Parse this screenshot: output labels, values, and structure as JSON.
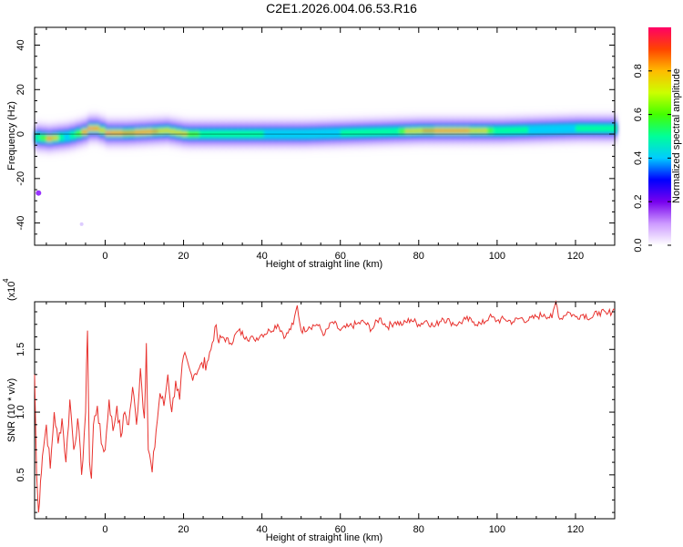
{
  "title": "C2E1.2026.004.06.53.R16",
  "colors": {
    "snr_line": "#e8322e",
    "axis": "#000000",
    "background": "#ffffff"
  },
  "chart_data": [
    {
      "type": "heatmap",
      "xlabel": "Height of straight line (km)",
      "ylabel": "Frequency (Hz)",
      "xlim": [
        -18,
        130
      ],
      "ylim": [
        -50,
        48
      ],
      "x_ticks": [
        0,
        20,
        40,
        60,
        80,
        100,
        120
      ],
      "y_ticks": [
        40,
        20,
        0,
        -20,
        -40
      ],
      "colorbar": {
        "label": "Normalized spectral amplitude",
        "range": [
          0,
          1
        ],
        "ticks": [
          "0.0",
          "0.2",
          "0.4",
          "0.6",
          "0.8"
        ],
        "colors": [
          "#ffffff",
          "#cc99ff",
          "#7700ee",
          "#0000ff",
          "#00ccff",
          "#00ff99",
          "#44ff00",
          "#ccff00",
          "#ffbb00",
          "#ff4400",
          "#ff0066"
        ]
      },
      "ridge": {
        "x": [
          -18,
          -15,
          -10,
          -8,
          -6,
          -4,
          -2,
          0,
          5,
          10,
          15,
          20,
          30,
          40,
          50,
          60,
          70,
          80,
          90,
          100,
          110,
          120,
          130
        ],
        "frequency": [
          -1.5,
          -2,
          -1,
          0,
          1,
          3,
          2,
          0.5,
          0.5,
          1,
          1.5,
          0,
          0,
          0,
          0,
          0.5,
          1,
          1.5,
          1.5,
          1.5,
          2,
          2.5,
          2.5
        ],
        "peak_amplitude": [
          0.6,
          0.9,
          0.5,
          0.7,
          0.9,
          1.0,
          0.8,
          0.95,
          0.85,
          0.9,
          0.8,
          0.75,
          0.7,
          0.6,
          0.55,
          0.6,
          0.65,
          0.85,
          0.9,
          0.7,
          0.55,
          0.6,
          0.65
        ]
      },
      "isolated_points": [
        {
          "x": -17,
          "frequency": -26.5,
          "amplitude": 0.1
        },
        {
          "x": -6,
          "frequency": -40.5,
          "amplitude": 0.02
        }
      ]
    },
    {
      "type": "line",
      "xlabel": "Height of straight line (km)",
      "ylabel": "SNR (10 * v/v)",
      "multiplier_label": "(x10",
      "multiplier_exp": "4",
      "xlim": [
        -18,
        130
      ],
      "ylim": [
        0.15,
        1.88
      ],
      "x_ticks": [
        0,
        20,
        40,
        60,
        80,
        100,
        120
      ],
      "y_ticks": [
        0.5,
        1.0,
        1.5
      ],
      "y_tick_labels": [
        "0.5",
        "1.0",
        "1.5"
      ],
      "series": [
        {
          "x": [
            -18,
            -17.5,
            -17,
            -16.5,
            -16,
            -15,
            -14,
            -13,
            -12,
            -11,
            -10,
            -9,
            -8,
            -7,
            -6,
            -5,
            -4.5,
            -4,
            -3.5,
            -3,
            -2,
            -1,
            0,
            1,
            2,
            3,
            4,
            5,
            6,
            7,
            8,
            9,
            10,
            10.5,
            11,
            12,
            13,
            14,
            15,
            16,
            17,
            18,
            19,
            20,
            22,
            24,
            26,
            27,
            28,
            29,
            30,
            32,
            34,
            36,
            38,
            40,
            42,
            44,
            46,
            48,
            49,
            50,
            52,
            54,
            56,
            58,
            60,
            62,
            64,
            66,
            68,
            70,
            72,
            74,
            76,
            78,
            80,
            82,
            84,
            86,
            88,
            90,
            92,
            94,
            96,
            98,
            100,
            102,
            104,
            106,
            108,
            110,
            112,
            114,
            115,
            116,
            118,
            120,
            122,
            124,
            126,
            128,
            130
          ],
          "values": [
            1.3,
            0.5,
            0.2,
            0.45,
            0.65,
            0.9,
            0.55,
            1.0,
            0.75,
            0.95,
            0.6,
            1.1,
            0.7,
            0.95,
            0.5,
            1.0,
            1.65,
            0.6,
            0.47,
            0.9,
            1.05,
            0.75,
            0.7,
            1.1,
            0.85,
            1.05,
            0.8,
            1.0,
            0.9,
            1.2,
            0.9,
            1.35,
            0.95,
            1.55,
            0.7,
            0.52,
            0.85,
            1.15,
            1.05,
            1.3,
            1.0,
            1.25,
            1.1,
            1.45,
            1.3,
            1.35,
            1.4,
            1.5,
            1.68,
            1.55,
            1.6,
            1.55,
            1.65,
            1.6,
            1.58,
            1.62,
            1.65,
            1.7,
            1.6,
            1.7,
            1.85,
            1.65,
            1.68,
            1.7,
            1.62,
            1.72,
            1.65,
            1.68,
            1.7,
            1.72,
            1.66,
            1.75,
            1.68,
            1.72,
            1.7,
            1.74,
            1.7,
            1.73,
            1.68,
            1.75,
            1.72,
            1.7,
            1.74,
            1.72,
            1.7,
            1.76,
            1.73,
            1.74,
            1.72,
            1.75,
            1.73,
            1.76,
            1.78,
            1.75,
            1.88,
            1.74,
            1.8,
            1.76,
            1.78,
            1.75,
            1.8,
            1.78,
            1.82
          ]
        }
      ]
    }
  ]
}
